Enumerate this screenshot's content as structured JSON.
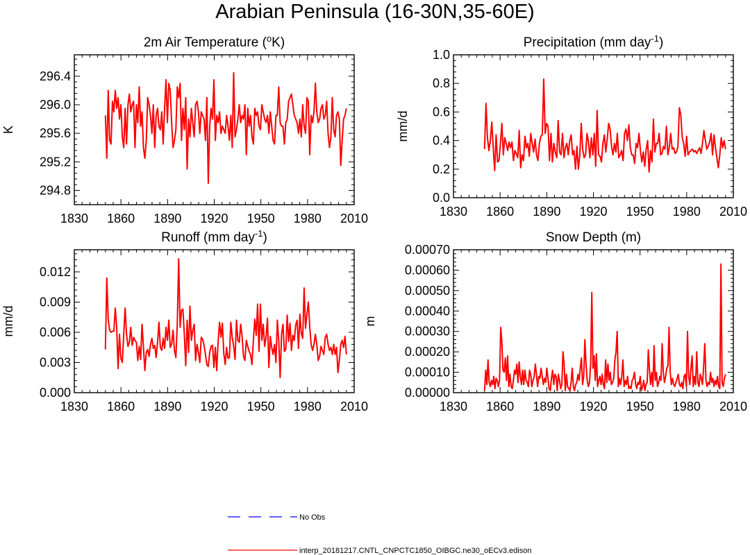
{
  "title": "Arabian Peninsula (16-30N,35-60E)",
  "colors": {
    "model": "#ff0000",
    "obs": "#0000ff",
    "axis": "#000000"
  },
  "legend": {
    "obs_label": "No Obs",
    "model_label": "interp_20181217.CNTL_CNPCTC1850_OIBGC.ne30_oECv3.edison"
  },
  "chart_data": [
    {
      "type": "line",
      "title": "2m Air Temperature (",
      "title_sup": "o",
      "title_end": "K)",
      "ylabel": "K",
      "xlim": [
        1830,
        2010
      ],
      "ylim": [
        294.6,
        296.7
      ],
      "xticks": [
        1830,
        1860,
        1890,
        1920,
        1950,
        1980,
        2010
      ],
      "yticks": [
        294.8,
        295.2,
        295.6,
        296.0,
        296.4
      ],
      "ytick_labels": [
        "294.8",
        "295.2",
        "295.6",
        "296.0",
        "296.4"
      ],
      "x_start": 1850,
      "series": [
        {
          "name": "interp_20181217.CNTL_CNPCTC1850_OIBGC.ne30_oECv3.edison",
          "values": [
            295.85,
            295.25,
            296.2,
            295.5,
            295.45,
            296.05,
            295.9,
            296.2,
            295.95,
            296.1,
            295.8,
            296.0,
            295.55,
            295.4,
            295.95,
            295.45,
            296.0,
            296.15,
            295.9,
            296.0,
            296.05,
            295.4,
            296.0,
            295.75,
            296.25,
            295.7,
            295.9,
            295.4,
            295.25,
            295.5,
            296.1,
            296.0,
            295.85,
            295.6,
            296.0,
            295.4,
            295.85,
            295.95,
            295.7,
            295.65,
            295.9,
            295.45,
            295.95,
            296.35,
            295.75,
            296.3,
            296.2,
            295.75,
            295.4,
            295.5,
            295.65,
            296.25,
            296.1,
            296.3,
            295.5,
            295.95,
            295.65,
            296.1,
            295.1,
            295.8,
            295.55,
            295.95,
            295.75,
            295.55,
            296.0,
            296.05,
            295.9,
            295.6,
            295.9,
            295.85,
            295.8,
            295.5,
            296.1,
            294.9,
            295.7,
            295.95,
            295.8,
            296.35,
            295.5,
            295.85,
            295.75,
            295.9,
            295.6,
            295.7,
            295.65,
            295.6,
            295.85,
            295.7,
            295.5,
            295.85,
            295.4,
            296.45,
            295.55,
            295.65,
            295.8,
            296.0,
            295.75,
            295.85,
            295.8,
            296.0,
            295.3,
            295.95,
            295.7,
            295.85,
            295.55,
            295.45,
            295.95,
            295.85,
            295.9,
            295.7,
            295.65,
            296.0,
            295.9,
            295.8,
            295.75,
            295.85,
            295.6,
            295.9,
            295.7,
            295.5,
            295.45,
            295.85,
            295.85,
            296.25,
            295.75,
            295.7,
            295.7,
            295.45,
            295.75,
            295.8,
            296.05,
            296.1,
            296.15,
            296.0,
            295.85,
            295.8,
            295.75,
            295.6,
            295.8,
            295.55,
            296.0,
            295.7,
            295.6,
            296.1,
            296.05,
            295.3,
            295.85,
            295.75,
            295.9,
            296.3,
            295.9,
            295.75,
            295.8,
            295.95,
            296.0,
            295.8,
            295.85,
            296.05,
            295.6,
            295.4,
            295.55,
            296.1,
            295.65,
            295.55,
            295.85,
            295.9,
            295.8,
            295.15,
            295.5,
            295.8,
            295.85,
            295.95
          ]
        }
      ]
    },
    {
      "type": "line",
      "title": "Precipitation (mm day",
      "title_sup": "-1",
      "title_end": ")",
      "ylabel": "mm/d",
      "xlim": [
        1830,
        2010
      ],
      "ylim": [
        0.0,
        1.0
      ],
      "xticks": [
        1830,
        1860,
        1890,
        1920,
        1950,
        1980,
        2010
      ],
      "yticks": [
        0.0,
        0.2,
        0.4,
        0.6,
        0.8,
        1.0
      ],
      "ytick_labels": [
        "0.0",
        "0.2",
        "0.4",
        "0.6",
        "0.8",
        "1.0"
      ],
      "x_start": 1850,
      "series": [
        {
          "name": "interp_20181217.CNTL_CNPCTC1850_OIBGC.ne30_oECv3.edison",
          "values": [
            0.34,
            0.66,
            0.42,
            0.33,
            0.4,
            0.53,
            0.35,
            0.19,
            0.44,
            0.25,
            0.26,
            0.38,
            0.52,
            0.3,
            0.42,
            0.38,
            0.33,
            0.39,
            0.35,
            0.39,
            0.26,
            0.33,
            0.31,
            0.28,
            0.47,
            0.21,
            0.3,
            0.26,
            0.43,
            0.35,
            0.38,
            0.29,
            0.45,
            0.38,
            0.32,
            0.41,
            0.3,
            0.26,
            0.38,
            0.43,
            0.44,
            0.83,
            0.45,
            0.52,
            0.5,
            0.26,
            0.45,
            0.25,
            0.38,
            0.32,
            0.28,
            0.54,
            0.32,
            0.3,
            0.45,
            0.28,
            0.35,
            0.38,
            0.3,
            0.4,
            0.44,
            0.3,
            0.33,
            0.2,
            0.36,
            0.2,
            0.3,
            0.52,
            0.34,
            0.28,
            0.3,
            0.45,
            0.39,
            0.28,
            0.42,
            0.3,
            0.45,
            0.22,
            0.61,
            0.3,
            0.29,
            0.25,
            0.38,
            0.44,
            0.32,
            0.41,
            0.52,
            0.48,
            0.36,
            0.3,
            0.38,
            0.32,
            0.45,
            0.28,
            0.3,
            0.33,
            0.26,
            0.45,
            0.48,
            0.4,
            0.51,
            0.35,
            0.3,
            0.3,
            0.24,
            0.38,
            0.35,
            0.45,
            0.33,
            0.25,
            0.32,
            0.22,
            0.34,
            0.4,
            0.18,
            0.33,
            0.25,
            0.55,
            0.32,
            0.38,
            0.38,
            0.45,
            0.3,
            0.31,
            0.36,
            0.34,
            0.5,
            0.3,
            0.35,
            0.45,
            0.34,
            0.35,
            0.31,
            0.32,
            0.36,
            0.63,
            0.58,
            0.42,
            0.38,
            0.29,
            0.43,
            0.3,
            0.32,
            0.33,
            0.34,
            0.32,
            0.33,
            0.31,
            0.33,
            0.35,
            0.31,
            0.38,
            0.47,
            0.4,
            0.34,
            0.36,
            0.39,
            0.45,
            0.3,
            0.44,
            0.35,
            0.28,
            0.21,
            0.3,
            0.42,
            0.35,
            0.4,
            0.34
          ]
        }
      ]
    },
    {
      "type": "line",
      "title": "Runoff (mm day",
      "title_sup": "-1",
      "title_end": ")",
      "ylabel": "mm/d",
      "xlim": [
        1830,
        2010
      ],
      "ylim": [
        0.0,
        0.0142
      ],
      "xticks": [
        1830,
        1860,
        1890,
        1920,
        1950,
        1980,
        2010
      ],
      "yticks": [
        0.0,
        0.003,
        0.006,
        0.009,
        0.012
      ],
      "ytick_labels": [
        "0.000",
        "0.003",
        "0.006",
        "0.009",
        "0.012"
      ],
      "x_start": 1850,
      "series": [
        {
          "name": "interp_20181217.CNTL_CNPCTC1850_OIBGC.ne30_oECv3.edison",
          "values": [
            0.0043,
            0.0114,
            0.0073,
            0.0062,
            0.006,
            0.0061,
            0.0061,
            0.0084,
            0.0065,
            0.0024,
            0.0058,
            0.0034,
            0.003,
            0.0058,
            0.0084,
            0.0058,
            0.0046,
            0.005,
            0.0065,
            0.0047,
            0.0055,
            0.0052,
            0.005,
            0.0032,
            0.0046,
            0.0033,
            0.0068,
            0.0045,
            0.0022,
            0.004,
            0.0043,
            0.0036,
            0.0048,
            0.0054,
            0.0044,
            0.0047,
            0.0035,
            0.005,
            0.007,
            0.0045,
            0.0042,
            0.0054,
            0.0044,
            0.0065,
            0.0052,
            0.0072,
            0.0045,
            0.0048,
            0.0062,
            0.0042,
            0.0035,
            0.0068,
            0.0133,
            0.0065,
            0.0082,
            0.0083,
            0.0058,
            0.0027,
            0.0072,
            0.004,
            0.0086,
            0.0052,
            0.0062,
            0.0068,
            0.0032,
            0.0048,
            0.004,
            0.003,
            0.0055,
            0.0053,
            0.0047,
            0.0038,
            0.0028,
            0.0026,
            0.004,
            0.0046,
            0.0047,
            0.0025,
            0.0045,
            0.0022,
            0.0051,
            0.007,
            0.0055,
            0.0069,
            0.0039,
            0.0028,
            0.0045,
            0.0034,
            0.0035,
            0.007,
            0.0055,
            0.0046,
            0.0033,
            0.0072,
            0.0052,
            0.005,
            0.0068,
            0.0056,
            0.0036,
            0.0032,
            0.0052,
            0.0046,
            0.0041,
            0.0038,
            0.0028,
            0.0052,
            0.0073,
            0.0057,
            0.0088,
            0.0041,
            0.0088,
            0.0052,
            0.0068,
            0.0046,
            0.0055,
            0.0074,
            0.0025,
            0.0056,
            0.0045,
            0.0038,
            0.0048,
            0.003,
            0.0072,
            0.0052,
            0.0015,
            0.0058,
            0.0068,
            0.0041,
            0.0043,
            0.0077,
            0.0051,
            0.0069,
            0.0042,
            0.0057,
            0.0052,
            0.0067,
            0.0072,
            0.0044,
            0.0078,
            0.0059,
            0.0054,
            0.0104,
            0.0064,
            0.0078,
            0.009,
            0.0065,
            0.0048,
            0.0042,
            0.0048,
            0.0058,
            0.0048,
            0.0032,
            0.0036,
            0.0046,
            0.0042,
            0.0038,
            0.0055,
            0.0058,
            0.0048,
            0.0042,
            0.0045,
            0.0038,
            0.0048,
            0.0038,
            0.0045,
            0.002,
            0.0032,
            0.0048,
            0.0052,
            0.0045,
            0.0056,
            0.0038
          ]
        }
      ]
    },
    {
      "type": "line",
      "title": "Snow Depth (m)",
      "title_sup": "",
      "title_end": "",
      "ylabel": "m",
      "xlim": [
        1830,
        2010
      ],
      "ylim": [
        0.0,
        0.0007
      ],
      "xticks": [
        1830,
        1860,
        1890,
        1920,
        1950,
        1980,
        2010
      ],
      "yticks": [
        0.0,
        0.0001,
        0.0002,
        0.0003,
        0.0004,
        0.0005,
        0.0006,
        0.0007
      ],
      "ytick_labels": [
        "0.00000",
        "0.00010",
        "0.00020",
        "0.00030",
        "0.00040",
        "0.00050",
        "0.00060",
        "0.00070"
      ],
      "x_start": 1850,
      "series": [
        {
          "name": "interp_20181217.CNTL_CNPCTC1850_OIBGC.ne30_oECv3.edison",
          "values": [
            1e-05,
            0.00011,
            4e-05,
            0.00016,
            5e-05,
            3e-05,
            6e-05,
            4e-05,
            8e-05,
            2e-05,
            7e-05,
            6e-05,
            3e-05,
            6e-05,
            0.00032,
            0.00025,
            0.00011,
            0.0001,
            0.00017,
            6e-05,
            0.00018,
            3e-05,
            9e-05,
            3e-05,
            2e-05,
            6e-05,
            0.00011,
            9e-05,
            0.00014,
            5e-05,
            0.00015,
            8e-05,
            4e-05,
            0.00011,
            4e-05,
            0.00011,
            6e-05,
            5e-05,
            3e-05,
            0.00011,
            9e-05,
            3e-05,
            6e-05,
            8e-05,
            0.00014,
            9e-05,
            3e-05,
            8e-05,
            7e-05,
            0.00012,
            8e-05,
            4e-05,
            7e-05,
            5e-05,
            0.00012,
            7e-05,
            2e-05,
            1e-05,
            7e-05,
            0.00011,
            4e-05,
            9e-05,
            8e-05,
            1e-05,
            9e-05,
            6e-05,
            2e-05,
            4e-05,
            0.0002,
            0.00014,
            1e-05,
            9e-05,
            3e-05,
            2e-05,
            1e-05,
            5e-05,
            0.00012,
            3e-05,
            1e-05,
            4e-05,
            5e-05,
            9e-05,
            6e-05,
            0.00012,
            0.00017,
            4e-05,
            8e-05,
            0.00026,
            0.00014,
            6e-05,
            3e-05,
            5e-05,
            0.00014,
            0.00049,
            0.00012,
            0.00018,
            6e-05,
            0.00019,
            3e-05,
            6e-05,
            8e-05,
            4e-05,
            9e-05,
            4e-05,
            2e-05,
            0.00016,
            5e-05,
            0.00014,
            6e-05,
            0.0001,
            4e-05,
            5e-05,
            7e-05,
            0.00016,
            0.0002,
            0.0003,
            3e-05,
            7e-05,
            4e-05,
            8e-05,
            0.00016,
            3e-05,
            6e-05,
            4e-05,
            8e-05,
            2e-05,
            3e-05,
            2e-05,
            6e-05,
            7e-05,
            0.0001,
            4e-05,
            2e-05,
            5e-05,
            4e-05,
            8e-05,
            1e-05,
            3e-05,
            6e-05,
            1e-05,
            4e-05,
            5e-05,
            0.00021,
            0.00011,
            4e-05,
            0.0001,
            3e-05,
            0.00023,
            6e-05,
            0.0001,
            3e-05,
            5e-05,
            8e-05,
            6e-05,
            0.00024,
            0.0001,
            5e-05,
            8e-05,
            0.00012,
            0.00013,
            0.00032,
            0.0001,
            4e-05,
            7e-05,
            4e-05,
            3e-05,
            5e-05,
            7e-05,
            9e-05,
            4e-05,
            3e-05,
            5e-05,
            2e-05,
            8e-05,
            9e-05,
            3e-05,
            0.0003,
            8e-05,
            4e-05,
            0.00012,
            0.00018,
            3e-05,
            8e-05,
            4e-05,
            0.0002,
            5e-05,
            3e-05,
            9e-05,
            7e-05,
            4e-05,
            0.00013,
            0.00024,
            6e-05,
            3e-05,
            5e-05,
            4e-05,
            0.0001,
            5e-05,
            7e-05,
            3e-05,
            6e-05,
            4e-05,
            8e-05,
            3e-05,
            2e-05,
            0.00063,
            5e-05,
            3e-05,
            7e-05,
            9e-05
          ]
        }
      ]
    }
  ]
}
